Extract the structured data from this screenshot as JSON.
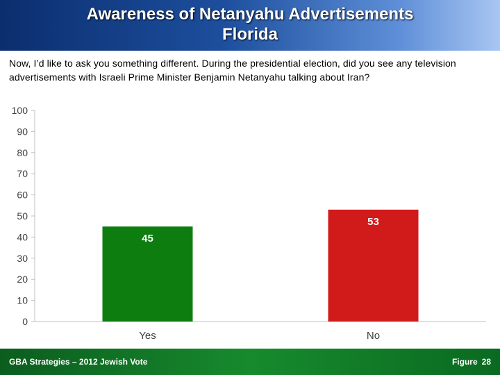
{
  "header": {
    "title_line1": "Awareness of Netanyahu Advertisements",
    "title_line2": "Florida"
  },
  "question": "Now, I’d like to ask you something different.  During the presidential election, did you see any television advertisements with Israeli Prime Minister Benjamin Netanyahu talking about Iran?",
  "chart_data": {
    "type": "bar",
    "categories": [
      "Yes",
      "No"
    ],
    "values": [
      45,
      53
    ],
    "bar_colors": [
      "#0e7d10",
      "#d11a1a"
    ],
    "ylim": [
      0,
      100
    ],
    "yticks": [
      0,
      10,
      20,
      30,
      40,
      50,
      60,
      70,
      80,
      90,
      100
    ],
    "grid": false,
    "data_labels": true,
    "title": "",
    "xlabel": "",
    "ylabel": ""
  },
  "footer": {
    "source": "GBA Strategies – 2012 Jewish Vote",
    "figure_label": "Figure",
    "figure_number": "28"
  }
}
